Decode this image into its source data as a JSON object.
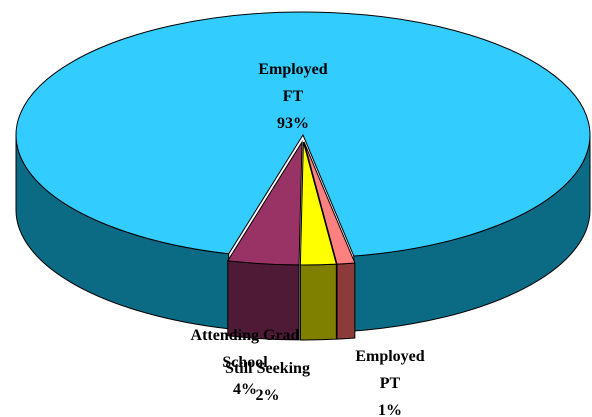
{
  "chart_data": {
    "type": "pie",
    "categories": [
      "Employed FT",
      "Employed PT",
      "Still Seeking",
      "Attending Grad School"
    ],
    "values": [
      93,
      1,
      2,
      4
    ],
    "value_labels": [
      "93%",
      "1%",
      "2%",
      "4%"
    ],
    "colors": [
      "#33ccff",
      "#ff8080",
      "#ffff00",
      "#993366"
    ],
    "side_colors": [
      "#0b6a84",
      "#8c3a3a",
      "#808000",
      "#4f1a36"
    ]
  }
}
